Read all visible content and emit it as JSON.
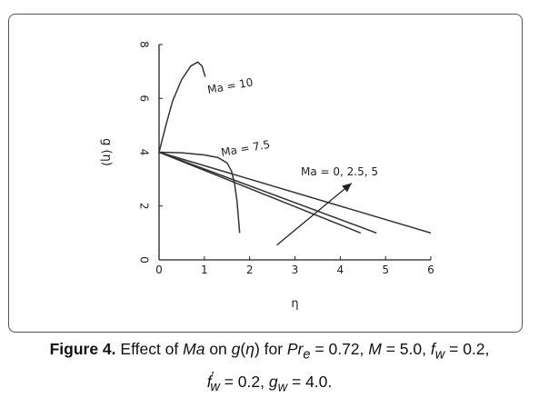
{
  "chart_data": {
    "type": "line",
    "xlabel": "η",
    "ylabel": "g (η)",
    "xlim": [
      0,
      6
    ],
    "ylim": [
      0,
      8
    ],
    "x_ticks": [
      "0",
      "1",
      "2",
      "3",
      "4",
      "5",
      "6"
    ],
    "y_ticks": [
      "0",
      "2",
      "4",
      "6",
      "8"
    ],
    "grid": false,
    "series": [
      {
        "name": "Ma = 10",
        "x": [
          0,
          0.15,
          0.3,
          0.5,
          0.7,
          0.85,
          0.95,
          1.02
        ],
        "y": [
          4,
          5.0,
          5.9,
          6.7,
          7.2,
          7.35,
          7.2,
          6.8
        ]
      },
      {
        "name": "Ma = 7.5",
        "x": [
          0,
          0.5,
          1.0,
          1.3,
          1.5,
          1.6,
          1.67,
          1.72,
          1.75,
          1.78
        ],
        "y": [
          4,
          3.98,
          3.9,
          3.8,
          3.6,
          3.3,
          2.8,
          2.2,
          1.6,
          1.0
        ]
      },
      {
        "name": "Ma = 0",
        "x": [
          0,
          6
        ],
        "y": [
          4,
          1.0
        ]
      },
      {
        "name": "Ma = 2.5",
        "x": [
          0,
          4.8
        ],
        "y": [
          4,
          1.0
        ]
      },
      {
        "name": "Ma = 5",
        "x": [
          0,
          4.45
        ],
        "y": [
          4,
          1.0
        ]
      }
    ],
    "annotations": {
      "ma10": "Ma = 10",
      "ma75": "Ma = 7.5",
      "ma0": "Ma = 0, 2.5, 5"
    },
    "arrow": {
      "from": [
        2.6,
        0.55
      ],
      "to": [
        4.25,
        2.85
      ]
    }
  },
  "caption": {
    "label": "Figure 4.",
    "t1": " Effect of ",
    "ma": "Ma",
    "t2": " on ",
    "g": "g",
    "t3": "(",
    "eta": "η",
    "t4": ") for ",
    "pr": "Pr",
    "pr_sub": "e",
    "t5": " = 0.72, ",
    "m": "M",
    "t6": " = 5.0, ",
    "f": "f",
    "fw_sub": "w",
    "t7": " = 0.2,",
    "fp": "f",
    "fp_sub": "w",
    "fp_prime": "′",
    "t8": " = 0.2, ",
    "gw": "g",
    "gw_sub": "w",
    "t9": " = 4.0."
  }
}
